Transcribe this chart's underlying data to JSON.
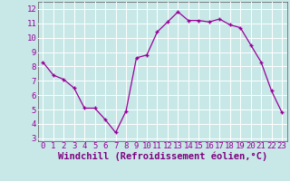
{
  "x": [
    0,
    1,
    2,
    3,
    4,
    5,
    6,
    7,
    8,
    9,
    10,
    11,
    12,
    13,
    14,
    15,
    16,
    17,
    18,
    19,
    20,
    21,
    22,
    23
  ],
  "y": [
    8.3,
    7.4,
    7.1,
    6.5,
    5.1,
    5.1,
    4.3,
    3.4,
    4.9,
    8.6,
    8.8,
    10.4,
    11.1,
    11.8,
    11.2,
    11.2,
    11.1,
    11.3,
    10.9,
    10.7,
    9.5,
    8.3,
    6.3,
    4.8
  ],
  "line_color": "#990099",
  "marker": "+",
  "bg_color": "#c8e8e8",
  "grid_color": "#ffffff",
  "tick_color": "#990099",
  "xlabel": "Windchill (Refroidissement éolien,°C)",
  "xlabel_color": "#800080",
  "ylim": [
    2.8,
    12.5
  ],
  "xlim": [
    -0.5,
    23.5
  ],
  "yticks": [
    3,
    4,
    5,
    6,
    7,
    8,
    9,
    10,
    11,
    12
  ],
  "xticks": [
    0,
    1,
    2,
    3,
    4,
    5,
    6,
    7,
    8,
    9,
    10,
    11,
    12,
    13,
    14,
    15,
    16,
    17,
    18,
    19,
    20,
    21,
    22,
    23
  ],
  "tick_label_size": 6.5,
  "xlabel_size": 7.5
}
